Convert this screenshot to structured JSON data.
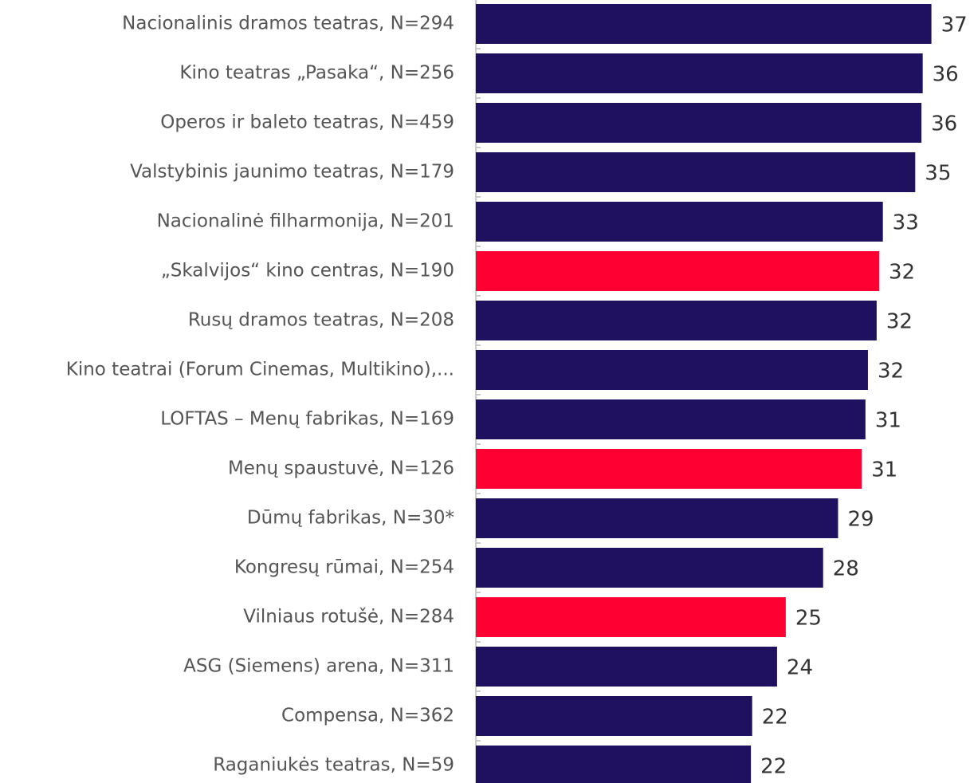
{
  "chart_data": {
    "type": "hbar",
    "categories": [
      "Nacionalinis dramos teatras, N=294",
      "Kino teatras „Pasaka“, N=256",
      "Operos ir baleto teatras, N=459",
      "Valstybinis jaunimo teatras, N=179",
      "Nacionalinė filharmonija, N=201",
      "„Skalvijos“ kino  centras, N=190",
      "Rusų dramos teatras, N=208",
      "Kino teatrai (Forum Cinemas, Multikino),...",
      "LOFTAS – Menų fabrikas, N=169",
      "Menų spaustuvė, N=126",
      "Dūmų fabrikas, N=30*",
      "Kongresų rūmai, N=254",
      "Vilniaus rotušė, N=284",
      "ASG (Siemens) arena, N=311",
      "Compensa, N=362",
      "Raganiukės teatras, N=59"
    ],
    "values": [
      36.6,
      35.9,
      35.8,
      35.3,
      32.7,
      32.4,
      32.2,
      31.5,
      31.3,
      31.0,
      29.1,
      27.9,
      24.9,
      24.2,
      22.2,
      22.1
    ],
    "value_labels": [
      "37",
      "36",
      "36",
      "35",
      "33",
      "32",
      "32",
      "32",
      "31",
      "31",
      "29",
      "28",
      "25",
      "24",
      "22",
      "22"
    ],
    "colors": [
      "#1f1060",
      "#1f1060",
      "#1f1060",
      "#1f1060",
      "#1f1060",
      "#ff0033",
      "#1f1060",
      "#1f1060",
      "#1f1060",
      "#ff0033",
      "#1f1060",
      "#1f1060",
      "#ff0033",
      "#1f1060",
      "#1f1060",
      "#1f1060"
    ],
    "xlim": [
      0,
      39.7
    ]
  }
}
